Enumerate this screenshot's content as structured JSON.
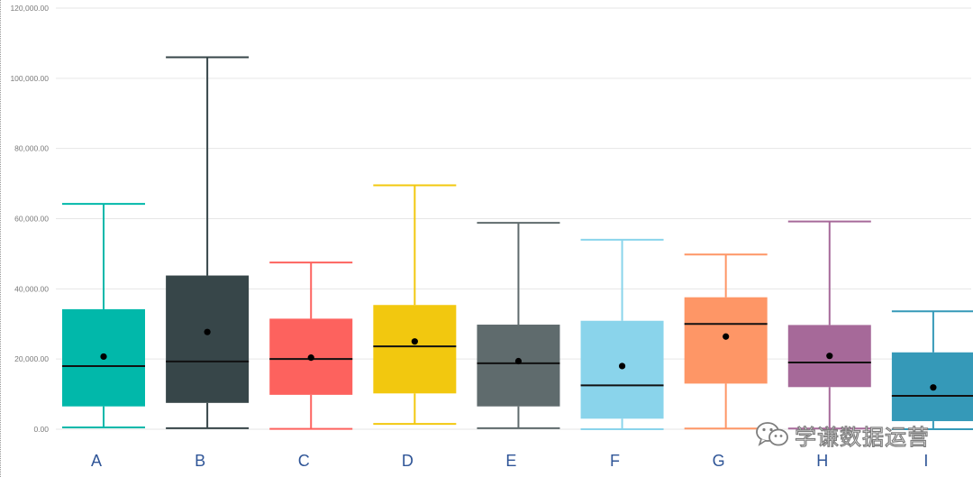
{
  "chart_data": {
    "type": "boxplot",
    "title": "",
    "xlabel": "",
    "ylabel": "",
    "ylim": [
      0,
      120000
    ],
    "y_ticks": [
      0,
      20000,
      40000,
      60000,
      80000,
      100000,
      120000
    ],
    "y_tick_labels": [
      "0.00",
      "20,000.00",
      "40,000.00",
      "60,000.00",
      "80,000.00",
      "100,000.00",
      "120,000.00"
    ],
    "grid": true,
    "categories": [
      "A",
      "B",
      "C",
      "D",
      "E",
      "F",
      "G",
      "H",
      "I"
    ],
    "boxes": [
      {
        "category": "A",
        "min": 500,
        "q1": 6500,
        "median": 18000,
        "q3": 34200,
        "max": 64200,
        "mean": 20700,
        "color": "#01B8AA"
      },
      {
        "category": "B",
        "min": 300,
        "q1": 7500,
        "median": 19300,
        "q3": 43800,
        "max": 106000,
        "mean": 27700,
        "color": "#374649"
      },
      {
        "category": "C",
        "min": 100,
        "q1": 9800,
        "median": 20000,
        "q3": 31500,
        "max": 47500,
        "mean": 20400,
        "color": "#FD625E"
      },
      {
        "category": "D",
        "min": 1500,
        "q1": 10200,
        "median": 23600,
        "q3": 35400,
        "max": 69500,
        "mean": 25000,
        "color": "#F2C80F"
      },
      {
        "category": "E",
        "min": 300,
        "q1": 6500,
        "median": 18800,
        "q3": 29800,
        "max": 58800,
        "mean": 19400,
        "color": "#5F6B6D"
      },
      {
        "category": "F",
        "min": 0,
        "q1": 3000,
        "median": 12500,
        "q3": 30900,
        "max": 54000,
        "mean": 18000,
        "color": "#8AD4EB"
      },
      {
        "category": "G",
        "min": 200,
        "q1": 13000,
        "median": 30000,
        "q3": 37600,
        "max": 49800,
        "mean": 26400,
        "color": "#FE9666"
      },
      {
        "category": "H",
        "min": 200,
        "q1": 12000,
        "median": 19000,
        "q3": 29700,
        "max": 59200,
        "mean": 20900,
        "color": "#A66999"
      },
      {
        "category": "I",
        "min": 0,
        "q1": 2300,
        "median": 9500,
        "q3": 21900,
        "max": 33600,
        "mean": 11900,
        "color": "#3599B8"
      }
    ]
  },
  "watermark": {
    "text": "学谦数据运营",
    "icon": "wechat-icon"
  }
}
